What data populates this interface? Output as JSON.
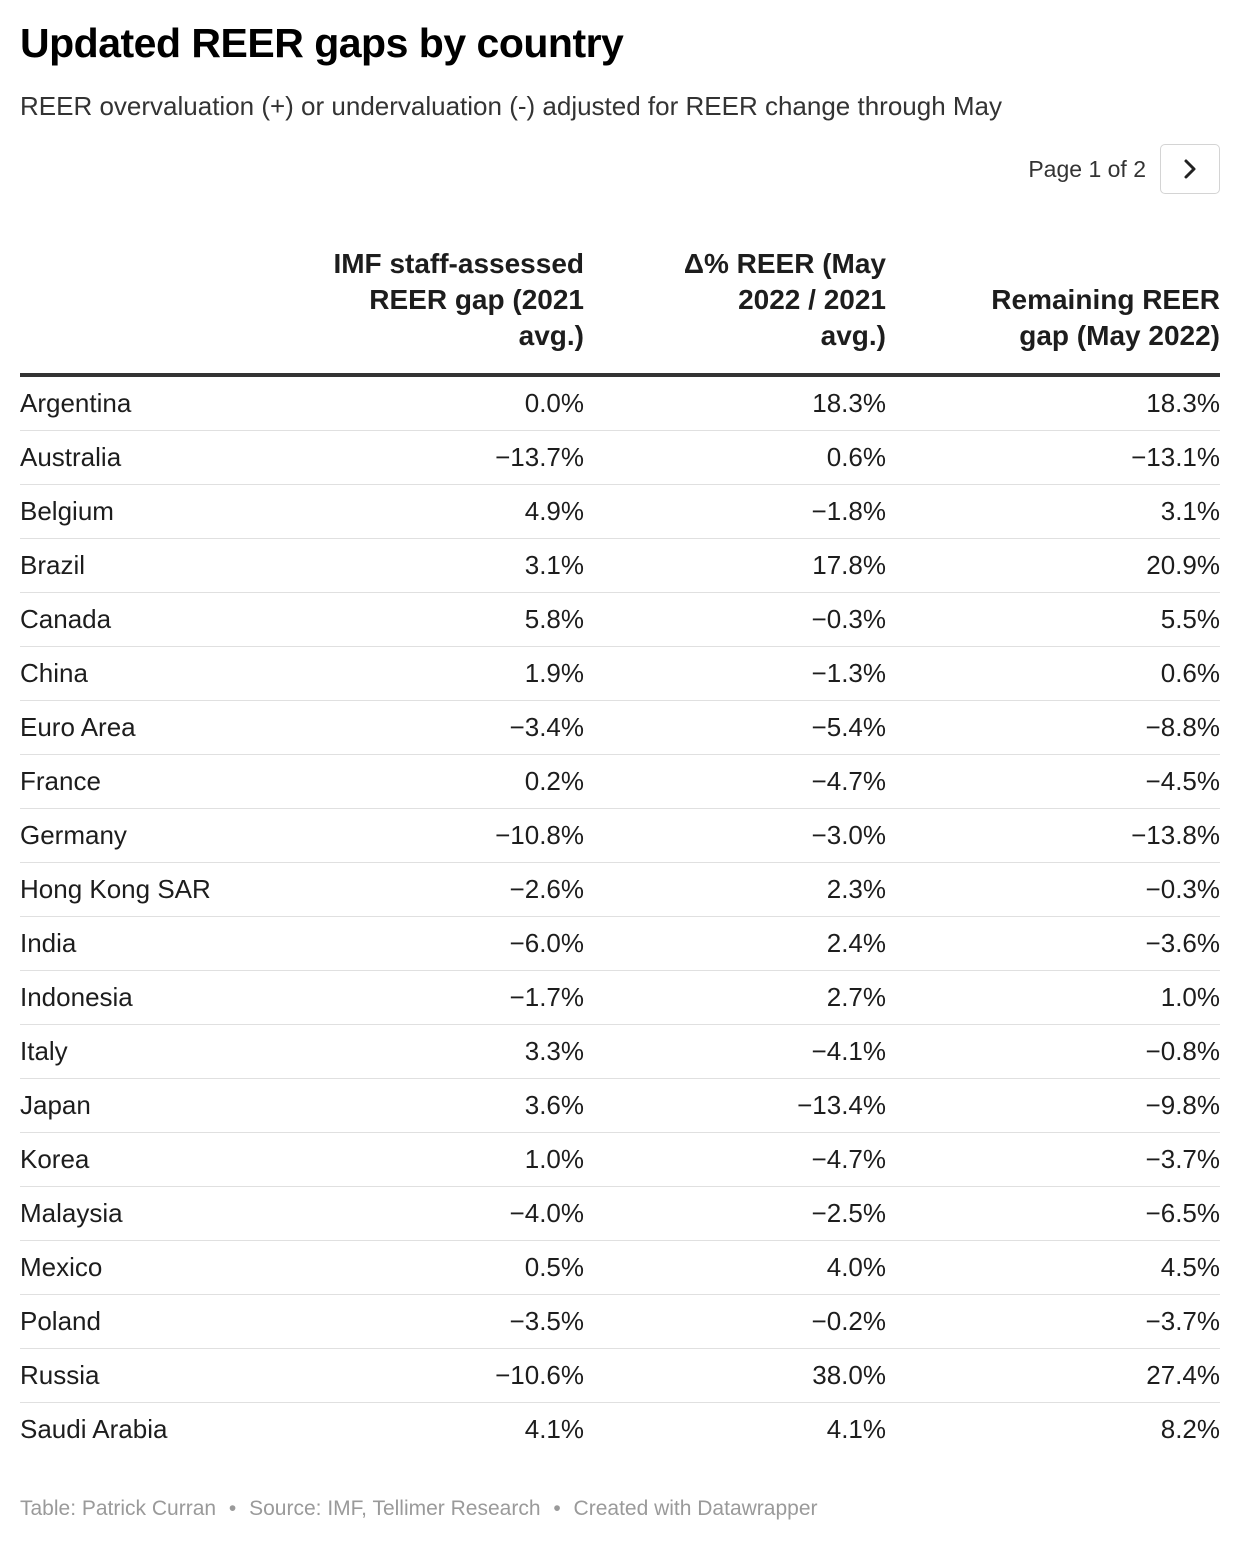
{
  "title": "Updated REER gaps by country",
  "subtitle": "REER overvaluation (+) or undervaluation (-) adjusted for REER change through May",
  "pagination": {
    "label": "Page 1 of 2",
    "next_icon": "chevron-right-icon"
  },
  "chart_data": {
    "type": "table",
    "columns": [
      "",
      "IMF staff-assessed REER gap (2021 avg.)",
      "Δ% REER (May 2022 / 2021 avg.)",
      "Remaining REER gap (May 2022)"
    ],
    "rows": [
      {
        "country": "Argentina",
        "imf_gap": "0.0%",
        "reer_change": "18.3%",
        "remaining_gap": "18.3%"
      },
      {
        "country": "Australia",
        "imf_gap": "−13.7%",
        "reer_change": "0.6%",
        "remaining_gap": "−13.1%"
      },
      {
        "country": "Belgium",
        "imf_gap": "4.9%",
        "reer_change": "−1.8%",
        "remaining_gap": "3.1%"
      },
      {
        "country": "Brazil",
        "imf_gap": "3.1%",
        "reer_change": "17.8%",
        "remaining_gap": "20.9%"
      },
      {
        "country": "Canada",
        "imf_gap": "5.8%",
        "reer_change": "−0.3%",
        "remaining_gap": "5.5%"
      },
      {
        "country": "China",
        "imf_gap": "1.9%",
        "reer_change": "−1.3%",
        "remaining_gap": "0.6%"
      },
      {
        "country": "Euro Area",
        "imf_gap": "−3.4%",
        "reer_change": "−5.4%",
        "remaining_gap": "−8.8%"
      },
      {
        "country": "France",
        "imf_gap": "0.2%",
        "reer_change": "−4.7%",
        "remaining_gap": "−4.5%"
      },
      {
        "country": "Germany",
        "imf_gap": "−10.8%",
        "reer_change": "−3.0%",
        "remaining_gap": "−13.8%"
      },
      {
        "country": "Hong Kong SAR",
        "imf_gap": "−2.6%",
        "reer_change": "2.3%",
        "remaining_gap": "−0.3%"
      },
      {
        "country": "India",
        "imf_gap": "−6.0%",
        "reer_change": "2.4%",
        "remaining_gap": "−3.6%"
      },
      {
        "country": "Indonesia",
        "imf_gap": "−1.7%",
        "reer_change": "2.7%",
        "remaining_gap": "1.0%"
      },
      {
        "country": "Italy",
        "imf_gap": "3.3%",
        "reer_change": "−4.1%",
        "remaining_gap": "−0.8%"
      },
      {
        "country": "Japan",
        "imf_gap": "3.6%",
        "reer_change": "−13.4%",
        "remaining_gap": "−9.8%"
      },
      {
        "country": "Korea",
        "imf_gap": "1.0%",
        "reer_change": "−4.7%",
        "remaining_gap": "−3.7%"
      },
      {
        "country": "Malaysia",
        "imf_gap": "−4.0%",
        "reer_change": "−2.5%",
        "remaining_gap": "−6.5%"
      },
      {
        "country": "Mexico",
        "imf_gap": "0.5%",
        "reer_change": "4.0%",
        "remaining_gap": "4.5%"
      },
      {
        "country": "Poland",
        "imf_gap": "−3.5%",
        "reer_change": "−0.2%",
        "remaining_gap": "−3.7%"
      },
      {
        "country": "Russia",
        "imf_gap": "−10.6%",
        "reer_change": "38.0%",
        "remaining_gap": "27.4%"
      },
      {
        "country": "Saudi Arabia",
        "imf_gap": "4.1%",
        "reer_change": "4.1%",
        "remaining_gap": "8.2%"
      }
    ]
  },
  "footer": {
    "table_credit": "Table: Patrick Curran",
    "source": "Source: IMF, Tellimer Research",
    "created_with": "Created with Datawrapper",
    "separator": "•"
  }
}
